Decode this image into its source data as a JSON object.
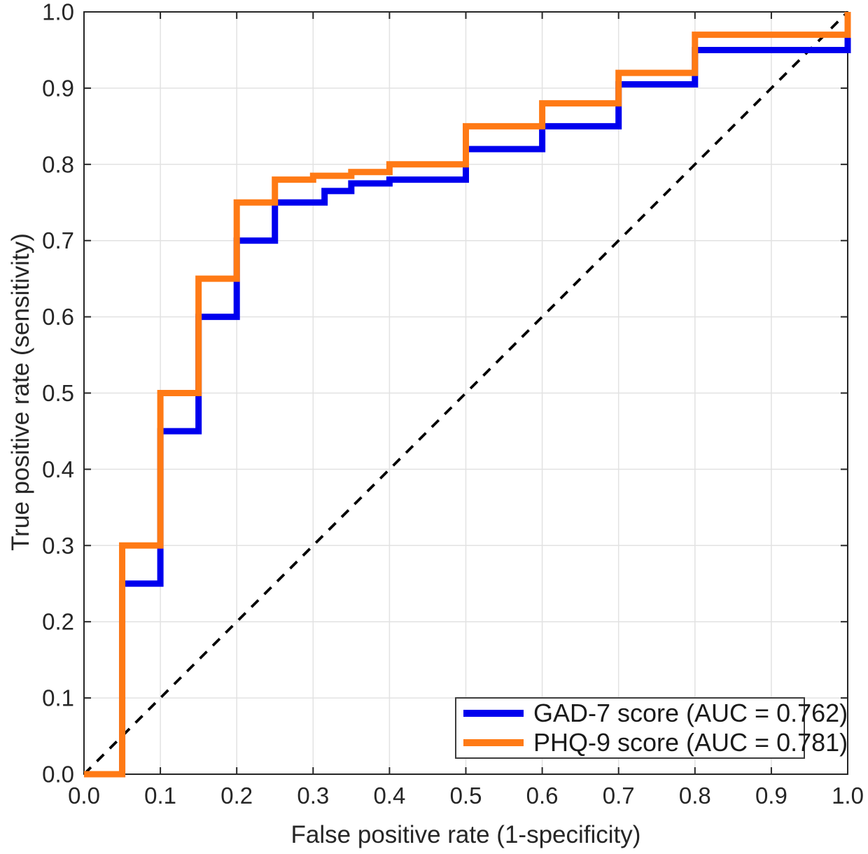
{
  "chart_data": {
    "type": "line",
    "subtype": "roc_step_curves",
    "title": "",
    "xlabel": "False positive rate (1-specificity)",
    "ylabel": "True positive rate (sensitivity)",
    "xlim": [
      0,
      1
    ],
    "ylim": [
      0,
      1
    ],
    "grid": true,
    "xtick_labels": [
      "0.0",
      "0.1",
      "0.2",
      "0.3",
      "0.4",
      "0.5",
      "0.6",
      "0.7",
      "0.8",
      "0.9",
      "1.0"
    ],
    "ytick_labels": [
      "0.0",
      "0.1",
      "0.2",
      "0.3",
      "0.4",
      "0.5",
      "0.6",
      "0.7",
      "0.8",
      "0.9",
      "1.0"
    ],
    "colors": {
      "gad7": "#0000EE",
      "phq9": "#FF7A15",
      "grid": "#E2E2E2",
      "axis": "#262626",
      "reference": "#000000",
      "background": "#FFFFFF"
    },
    "reference_line": {
      "type": "chance-diagonal",
      "from": [
        0,
        0
      ],
      "to": [
        1,
        1
      ],
      "dashed": true
    },
    "legend": {
      "position": "lower right",
      "entries": [
        "GAD-7 score (AUC = 0.762)",
        "PHQ-9 score (AUC = 0.781)"
      ]
    },
    "series": [
      {
        "name": "GAD-7 score",
        "auc": "0.762",
        "label": "GAD-7 score (AUC = 0.762)",
        "color_key": "gad7",
        "points": [
          [
            0,
            0
          ],
          [
            0.05,
            0
          ],
          [
            0.05,
            0.25
          ],
          [
            0.1,
            0.25
          ],
          [
            0.1,
            0.45
          ],
          [
            0.15,
            0.45
          ],
          [
            0.15,
            0.6
          ],
          [
            0.2,
            0.6
          ],
          [
            0.2,
            0.7
          ],
          [
            0.25,
            0.7
          ],
          [
            0.25,
            0.75
          ],
          [
            0.315,
            0.75
          ],
          [
            0.315,
            0.765
          ],
          [
            0.35,
            0.765
          ],
          [
            0.35,
            0.775
          ],
          [
            0.4,
            0.775
          ],
          [
            0.4,
            0.78
          ],
          [
            0.5,
            0.78
          ],
          [
            0.5,
            0.82
          ],
          [
            0.6,
            0.82
          ],
          [
            0.6,
            0.85
          ],
          [
            0.7,
            0.85
          ],
          [
            0.7,
            0.905
          ],
          [
            0.8,
            0.905
          ],
          [
            0.8,
            0.95
          ],
          [
            1,
            0.95
          ],
          [
            1,
            1
          ]
        ]
      },
      {
        "name": "PHQ-9 score",
        "auc": "0.781",
        "label": "PHQ-9 score (AUC = 0.781)",
        "color_key": "phq9",
        "points": [
          [
            0,
            0
          ],
          [
            0.05,
            0
          ],
          [
            0.05,
            0.3
          ],
          [
            0.1,
            0.3
          ],
          [
            0.1,
            0.5
          ],
          [
            0.15,
            0.5
          ],
          [
            0.15,
            0.65
          ],
          [
            0.2,
            0.65
          ],
          [
            0.2,
            0.75
          ],
          [
            0.25,
            0.75
          ],
          [
            0.25,
            0.78
          ],
          [
            0.3,
            0.78
          ],
          [
            0.3,
            0.785
          ],
          [
            0.35,
            0.785
          ],
          [
            0.35,
            0.79
          ],
          [
            0.4,
            0.79
          ],
          [
            0.4,
            0.8
          ],
          [
            0.5,
            0.8
          ],
          [
            0.5,
            0.85
          ],
          [
            0.6,
            0.85
          ],
          [
            0.6,
            0.88
          ],
          [
            0.7,
            0.88
          ],
          [
            0.7,
            0.92
          ],
          [
            0.8,
            0.92
          ],
          [
            0.8,
            0.97
          ],
          [
            1,
            0.97
          ],
          [
            1,
            1
          ]
        ]
      }
    ]
  }
}
